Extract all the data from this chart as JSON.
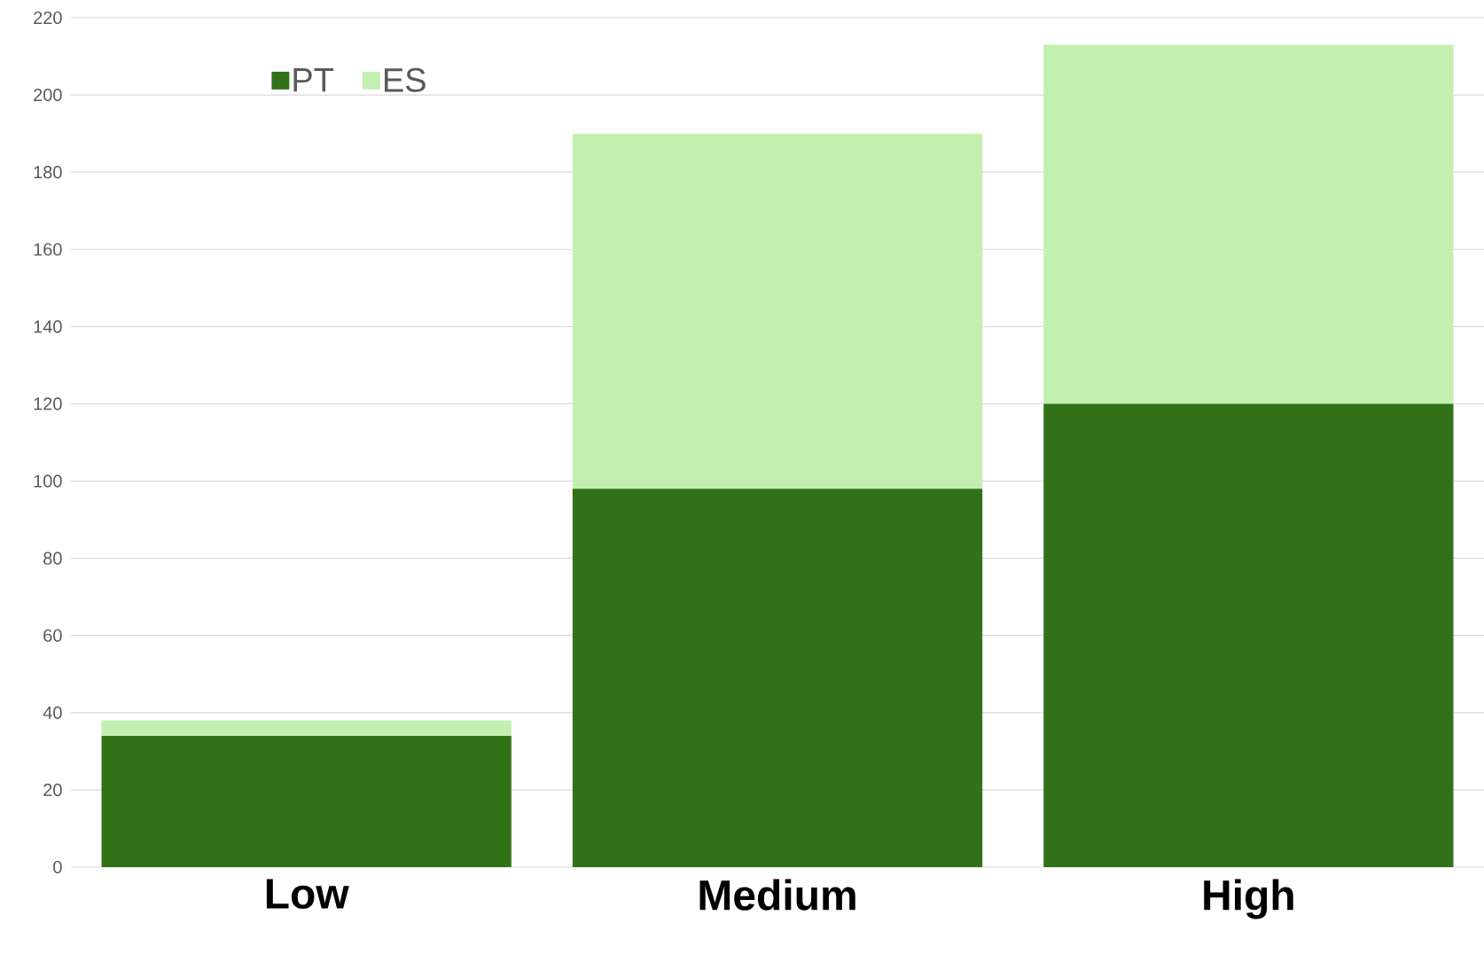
{
  "chart_data": {
    "type": "bar",
    "stacked": true,
    "categories": [
      "Low",
      "Medium",
      "High"
    ],
    "series": [
      {
        "name": "PT",
        "color": "#317219",
        "values": [
          34,
          98,
          120
        ]
      },
      {
        "name": "ES",
        "color": "#c3efb0",
        "values": [
          4,
          92,
          93
        ]
      }
    ],
    "ylim": [
      0,
      220
    ],
    "yticks": [
      0,
      20,
      40,
      60,
      80,
      100,
      120,
      140,
      160,
      180,
      200,
      220
    ],
    "grid": "y",
    "legend": "top left"
  }
}
